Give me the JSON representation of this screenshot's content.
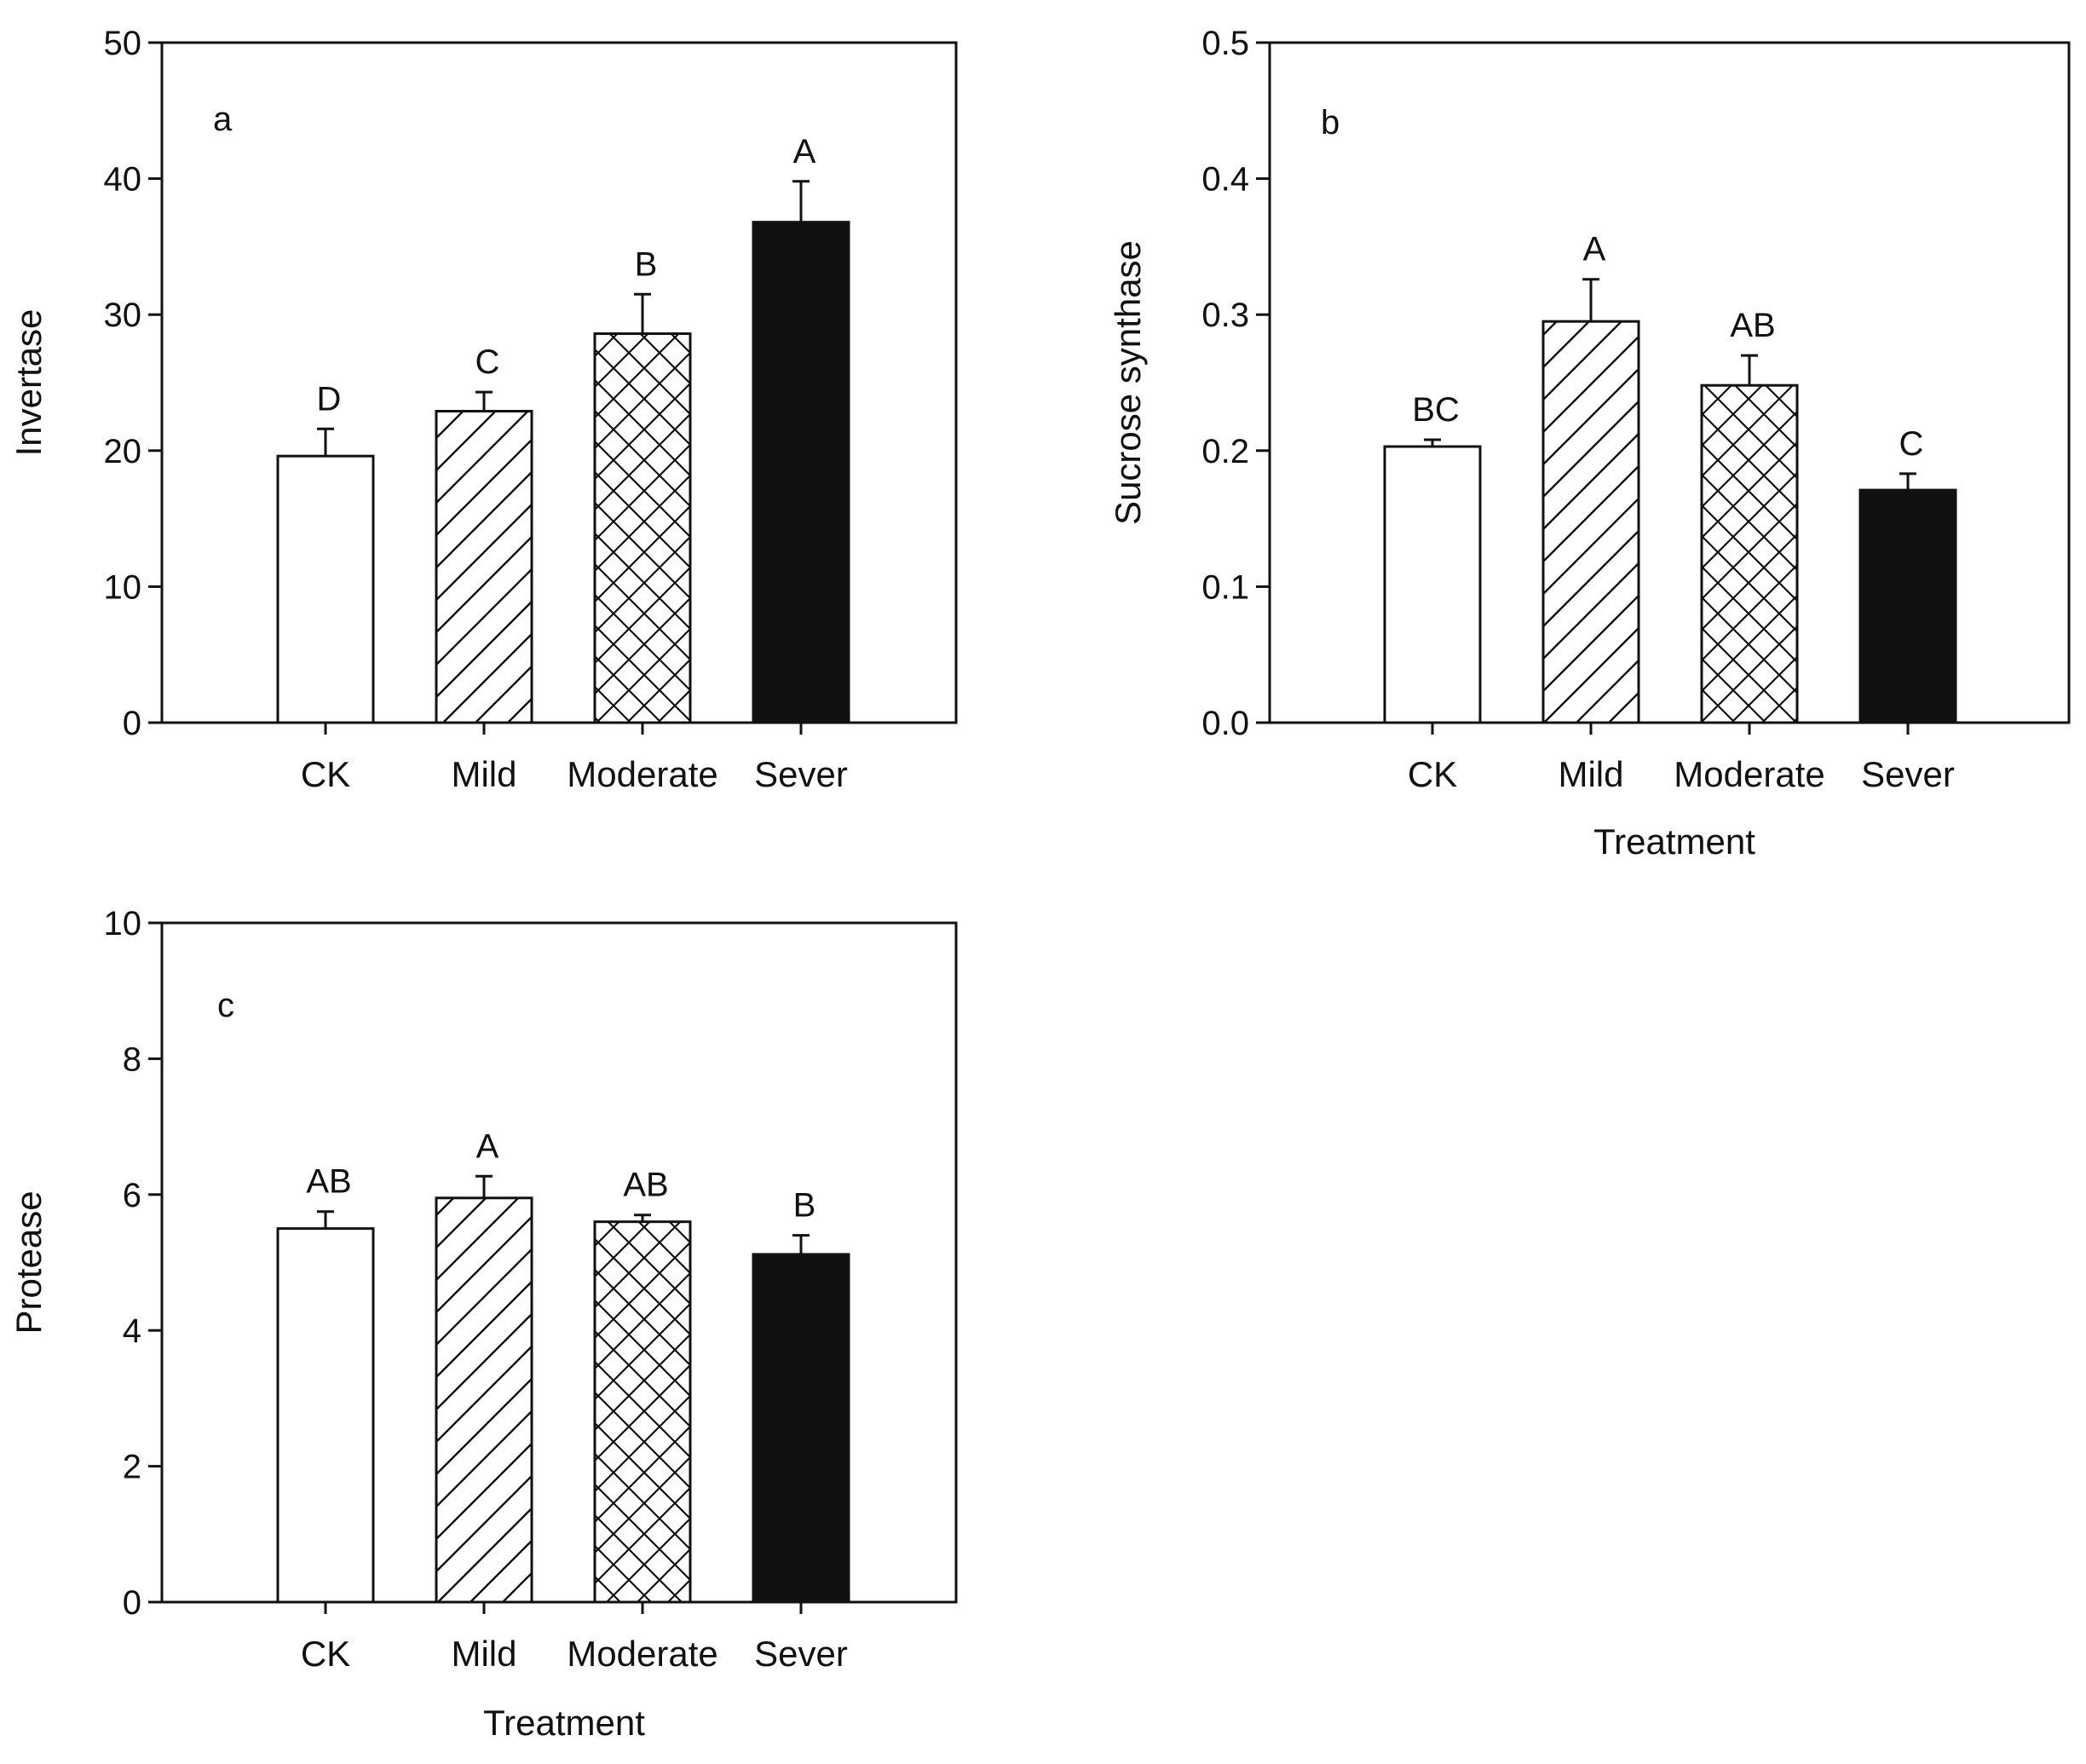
{
  "chart_data": [
    {
      "type": "bar",
      "panel_label": "a",
      "title": "",
      "xlabel": "",
      "ylabel": "Invertase",
      "ylim": [
        0,
        50
      ],
      "yticks": [
        "0",
        "10",
        "20",
        "30",
        "40",
        "50"
      ],
      "categories": [
        "CK",
        "Mild",
        "Moderate",
        "Sever"
      ],
      "values": [
        19.6,
        22.9,
        28.6,
        36.8
      ],
      "errors": [
        2.0,
        1.4,
        2.9,
        3.0
      ],
      "letters": [
        "D",
        "C",
        "B",
        "A"
      ],
      "fills": [
        "white",
        "diag",
        "cross",
        "black"
      ],
      "grid": false
    },
    {
      "type": "bar",
      "panel_label": "b",
      "title": "",
      "xlabel": "Treatment",
      "ylabel": "Sucrose synthase",
      "ylim": [
        0,
        0.5
      ],
      "yticks": [
        "0.0",
        "0.1",
        "0.2",
        "0.3",
        "0.4",
        "0.5"
      ],
      "categories": [
        "CK",
        "Mild",
        "Moderate",
        "Sever"
      ],
      "values": [
        0.203,
        0.295,
        0.248,
        0.171
      ],
      "errors": [
        0.005,
        0.031,
        0.022,
        0.012
      ],
      "letters": [
        "BC",
        "A",
        "AB",
        "C"
      ],
      "fills": [
        "white",
        "diag",
        "cross",
        "black"
      ],
      "grid": false
    },
    {
      "type": "bar",
      "panel_label": "c",
      "title": "",
      "xlabel": "Treatment",
      "ylabel": "Protease",
      "ylim": [
        0,
        10
      ],
      "yticks": [
        "0",
        "2",
        "4",
        "6",
        "8",
        "10"
      ],
      "categories": [
        "CK",
        "Mild",
        "Moderate",
        "Sever"
      ],
      "values": [
        5.5,
        5.95,
        5.6,
        5.12
      ],
      "errors": [
        0.25,
        0.32,
        0.1,
        0.28
      ],
      "letters": [
        "AB",
        "A",
        "AB",
        "B"
      ],
      "fills": [
        "white",
        "diag",
        "cross",
        "black"
      ],
      "grid": false
    }
  ]
}
